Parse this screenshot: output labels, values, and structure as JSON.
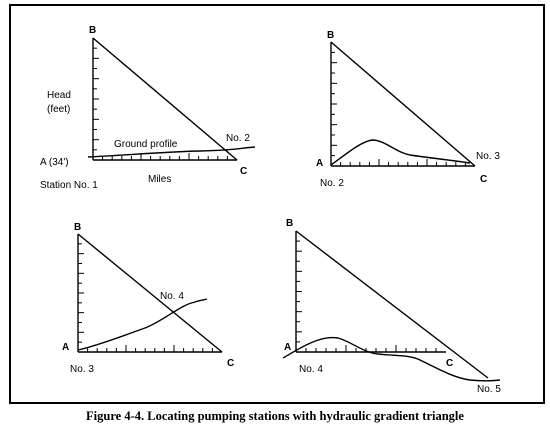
{
  "caption": "Figure 4-4. Locating pumping stations with hydraulic gradient triangle",
  "panel1": {
    "apex": "B",
    "vertex_a": "A (34')",
    "vertex_c": "C",
    "ylabel_line1": "Head",
    "ylabel_line2": "(feet)",
    "xlabel": "Miles",
    "profile_label": "Ground profile",
    "start_station": "Station No. 1",
    "next_station": "No. 2"
  },
  "panel2": {
    "apex": "B",
    "vertex_a": "A",
    "vertex_c": "C",
    "start_station": "No. 2",
    "next_station": "No. 3"
  },
  "panel3": {
    "apex": "B",
    "vertex_a": "A",
    "vertex_c": "C",
    "start_station": "No. 3",
    "next_station": "No. 4"
  },
  "panel4": {
    "apex": "B",
    "vertex_a": "A",
    "vertex_c": "C",
    "start_station": "No. 4",
    "next_station": "No. 5"
  }
}
